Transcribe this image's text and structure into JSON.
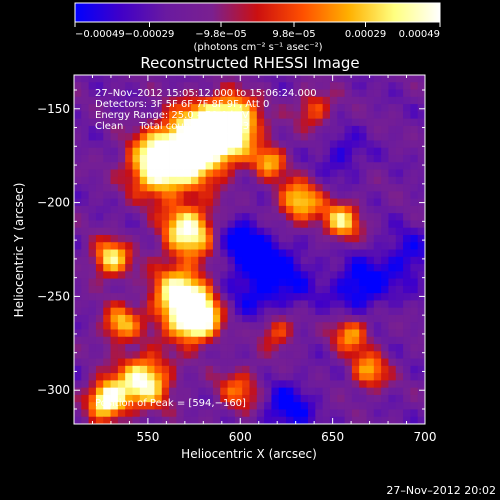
{
  "chart_data": {
    "type": "heatmap",
    "title": "Reconstructed RHESSI Image",
    "xlabel": "Heliocentric X (arcsec)",
    "ylabel": "Heliocentric Y (arcsec)",
    "xlim": [
      510,
      700
    ],
    "ylim": [
      -318,
      -132
    ],
    "x_ticks": [
      550,
      600,
      650,
      700
    ],
    "x_tick_labels": [
      "550",
      "600",
      "650",
      "700"
    ],
    "y_ticks": [
      -150,
      -200,
      -250,
      -300
    ],
    "y_tick_labels": [
      "−150",
      "−200",
      "−250",
      "−300"
    ],
    "grid": false,
    "colorbar": {
      "range": [
        -0.00049,
        0.00049
      ],
      "ticks": [
        -0.00049,
        -0.00029,
        -9.8e-05,
        9.8e-05,
        0.00029,
        0.00049
      ],
      "tick_labels": [
        "−0.00049",
        "−0.00029",
        "−9.8e−05",
        "9.8e−05",
        "0.00029",
        "0.00049"
      ],
      "units_label": "(photons cm⁻² s⁻¹ asec⁻²)",
      "colors": [
        "#0000ff",
        "#4000c8",
        "#6a1aa0",
        "#7a2090",
        "#cc1010",
        "#ff5000",
        "#ffb000",
        "#ffff80",
        "#ffffff"
      ]
    },
    "annotations": [
      "27–Nov–2012 15:05:12.000 to 15:06:24.000",
      "Detectors: 3F 5F 6F 7F 8F 9F, Att 0",
      "Energy Range: 25.0 – 50.0 keV",
      "Clean     Total counts: 1.6E+03"
    ],
    "peak_label": "Position of Peak = [594,−160]",
    "peak_position": [
      594,
      -160
    ],
    "grid_cols": 48,
    "grid_rows": 48
  },
  "footer": {
    "timestamp": "27–Nov–2012 20:02"
  }
}
